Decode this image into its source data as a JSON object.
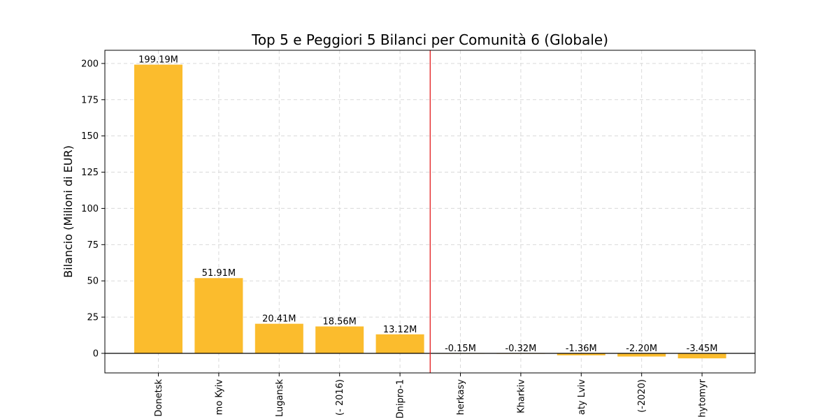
{
  "chart_data": {
    "type": "bar",
    "title": "Top 5 e Peggiori 5 Bilanci per Comunità 6 (Globale)",
    "xlabel": "",
    "ylabel": "Bilancio (Milioni di EUR)",
    "ylim": [
      -13.5,
      209.1
    ],
    "yticks": [
      0,
      25,
      50,
      75,
      100,
      125,
      150,
      175,
      200
    ],
    "grid": true,
    "categories": [
      "Donetsk",
      "mo Kyiv",
      "Lugansk",
      "(- 2016)",
      "Dnipro-1",
      "herkasy",
      "Kharkiv",
      "aty Lviv",
      "(-2020)",
      "hytomyr"
    ],
    "values": [
      199.19,
      51.91,
      20.41,
      18.56,
      13.12,
      -0.15,
      -0.32,
      -1.36,
      -2.2,
      -3.45
    ],
    "value_labels": [
      "199.19M",
      "51.91M",
      "20.41M",
      "18.56M",
      "13.12M",
      "-0.15M",
      "-0.32M",
      "-1.36M",
      "-2.20M",
      "-3.45M"
    ],
    "separator_after_index": 4,
    "colors": {
      "bar": "#fbbc2d",
      "separator": "#e31a1c",
      "zero_line": "#000000",
      "grid": "#d9d9d9"
    }
  }
}
